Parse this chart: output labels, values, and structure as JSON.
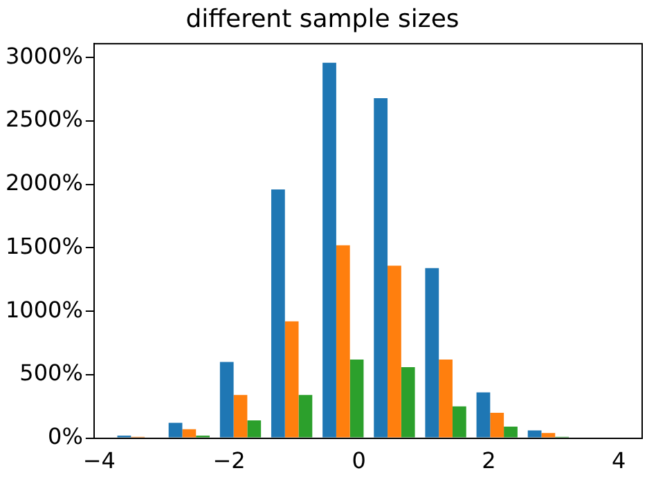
{
  "chart_data": {
    "type": "histogram",
    "title": "different sample sizes",
    "bins": [
      -3.8,
      -3.01,
      -2.22,
      -1.43,
      -0.64,
      0.15,
      0.94,
      1.73,
      2.52,
      3.31
    ],
    "series": [
      {
        "color": "#1f77b4",
        "values": [
          20,
          120,
          600,
          1960,
          2960,
          2680,
          1340,
          360,
          60
        ]
      },
      {
        "color": "#ff7f0e",
        "values": [
          10,
          70,
          340,
          920,
          1520,
          1360,
          620,
          200,
          40
        ]
      },
      {
        "color": "#2ca02c",
        "values": [
          0,
          20,
          140,
          340,
          620,
          560,
          250,
          90,
          10
        ]
      }
    ],
    "xlim": [
      -4.08,
      4.36
    ],
    "xticks": [
      {
        "value": -4,
        "label": "−4"
      },
      {
        "value": -2,
        "label": "−2"
      },
      0,
      2,
      4
    ],
    "ylim": [
      0,
      3110
    ],
    "yticks": [
      {
        "value": 0,
        "label": "0%"
      },
      {
        "value": 500,
        "label": "500%"
      },
      {
        "value": 1000,
        "label": "1000%"
      },
      {
        "value": 1500,
        "label": "1500%"
      },
      {
        "value": 2000,
        "label": "2000%"
      },
      {
        "value": 2500,
        "label": "2500%"
      },
      {
        "value": 3000,
        "label": "3000%"
      }
    ],
    "grid": false,
    "legend": false
  }
}
